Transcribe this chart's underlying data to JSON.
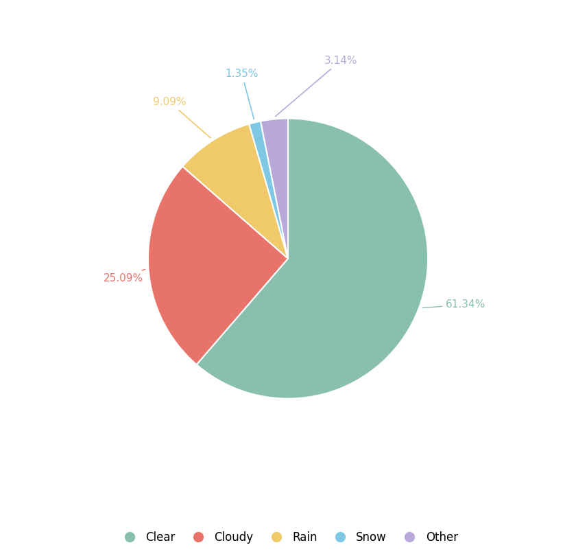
{
  "labels": [
    "Clear",
    "Cloudy",
    "Rain",
    "Snow",
    "Other"
  ],
  "values": [
    61.34,
    25.09,
    9.09,
    1.35,
    3.14
  ],
  "colors": [
    "#88bfad",
    "#e8736a",
    "#f0c96a",
    "#7ec8e3",
    "#b8a9d9"
  ],
  "label_colors": [
    "#88bfad",
    "#e8736a",
    "#f0c96a",
    "#7ec8e3",
    "#b8a9d9"
  ],
  "background_color": "#ffffff",
  "legend_labels": [
    "Clear",
    "Cloudy",
    "Rain",
    "Snow",
    "Other"
  ],
  "startangle": 90,
  "pct_labels": [
    "61.34%",
    "25.09%",
    "9.09%",
    "1.35%",
    "3.14%"
  ]
}
